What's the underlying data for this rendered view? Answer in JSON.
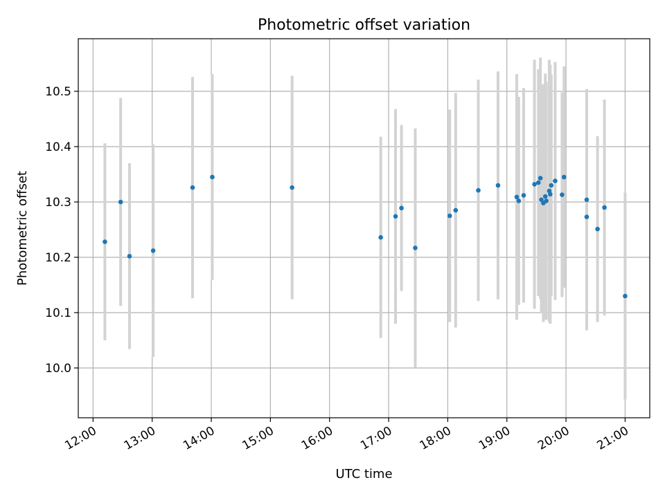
{
  "chart_data": {
    "type": "scatter",
    "title": "Photometric offset variation",
    "xlabel": "UTC time",
    "ylabel": "Photometric offset",
    "xlim": [
      "11:45",
      "21:25"
    ],
    "ylim": [
      9.91,
      10.595
    ],
    "x_ticks": [
      "12:00",
      "13:00",
      "14:00",
      "15:00",
      "16:00",
      "17:00",
      "18:00",
      "19:00",
      "20:00",
      "21:00"
    ],
    "y_ticks": [
      "10.0",
      "10.1",
      "10.2",
      "10.3",
      "10.4",
      "10.5"
    ],
    "grid": true,
    "legend": "none",
    "colors": {
      "points": "#1f77b4",
      "error_bars": "#d3d3d3"
    },
    "points": [
      {
        "x": "12:12",
        "y": 10.228,
        "err": 0.178
      },
      {
        "x": "12:28",
        "y": 10.3,
        "err": 0.188
      },
      {
        "x": "12:37",
        "y": 10.202,
        "err": 0.168
      },
      {
        "x": "13:01",
        "y": 10.212,
        "err": 0.192
      },
      {
        "x": "13:41",
        "y": 10.326,
        "err": 0.2
      },
      {
        "x": "14:01",
        "y": 10.345,
        "err": 0.186
      },
      {
        "x": "15:22",
        "y": 10.326,
        "err": 0.202
      },
      {
        "x": "16:52",
        "y": 10.236,
        "err": 0.182
      },
      {
        "x": "17:07",
        "y": 10.274,
        "err": 0.194
      },
      {
        "x": "17:13",
        "y": 10.289,
        "err": 0.15
      },
      {
        "x": "17:27",
        "y": 10.217,
        "err": 0.216
      },
      {
        "x": "18:02",
        "y": 10.275,
        "err": 0.192
      },
      {
        "x": "18:08",
        "y": 10.285,
        "err": 0.212
      },
      {
        "x": "18:31",
        "y": 10.321,
        "err": 0.2
      },
      {
        "x": "18:51",
        "y": 10.33,
        "err": 0.206
      },
      {
        "x": "19:10",
        "y": 10.309,
        "err": 0.222
      },
      {
        "x": "19:12",
        "y": 10.302,
        "err": 0.188
      },
      {
        "x": "19:17",
        "y": 10.312,
        "err": 0.194
      },
      {
        "x": "19:28",
        "y": 10.332,
        "err": 0.225
      },
      {
        "x": "19:32",
        "y": 10.335,
        "err": 0.205
      },
      {
        "x": "19:34",
        "y": 10.343,
        "err": 0.218
      },
      {
        "x": "19:35",
        "y": 10.304,
        "err": 0.205
      },
      {
        "x": "19:37",
        "y": 10.298,
        "err": 0.215
      },
      {
        "x": "19:39",
        "y": 10.31,
        "err": 0.222
      },
      {
        "x": "19:40",
        "y": 10.302,
        "err": 0.215
      },
      {
        "x": "19:43",
        "y": 10.32,
        "err": 0.237
      },
      {
        "x": "19:44",
        "y": 10.314,
        "err": 0.234
      },
      {
        "x": "19:45",
        "y": 10.33,
        "err": 0.2
      },
      {
        "x": "19:49",
        "y": 10.338,
        "err": 0.215
      },
      {
        "x": "19:56",
        "y": 10.313,
        "err": 0.185
      },
      {
        "x": "19:58",
        "y": 10.345,
        "err": 0.2
      },
      {
        "x": "20:21",
        "y": 10.304,
        "err": 0.2
      },
      {
        "x": "20:21",
        "y": 10.273,
        "err": 0.205
      },
      {
        "x": "20:32",
        "y": 10.251,
        "err": 0.168
      },
      {
        "x": "20:39",
        "y": 10.29,
        "err": 0.195
      },
      {
        "x": "21:00",
        "y": 10.13,
        "err": 0.187
      }
    ]
  }
}
